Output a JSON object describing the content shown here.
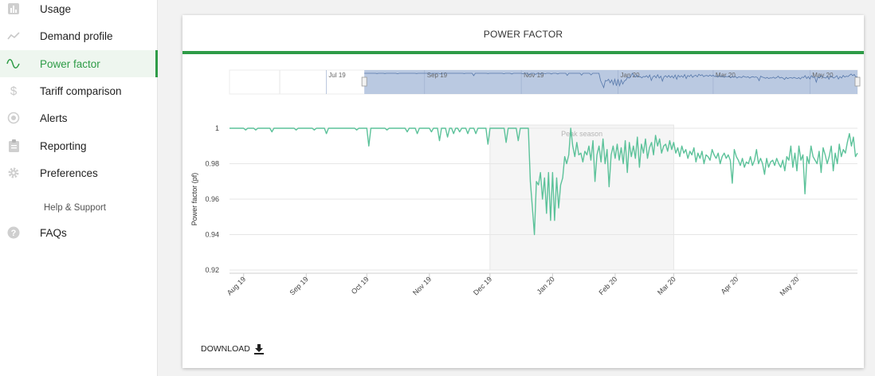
{
  "sidebar": {
    "items": [
      {
        "label": "Usage",
        "icon": "bar-chart-icon"
      },
      {
        "label": "Demand profile",
        "icon": "trend-line-icon"
      },
      {
        "label": "Power factor",
        "icon": "sine-wave-icon",
        "active": true
      },
      {
        "label": "Tariff comparison",
        "icon": "dollar-icon"
      },
      {
        "label": "Alerts",
        "icon": "alert-target-icon"
      },
      {
        "label": "Reporting",
        "icon": "clipboard-icon"
      },
      {
        "label": "Preferences",
        "icon": "gear-icon"
      }
    ],
    "section_label": "Help & Support",
    "help_items": [
      {
        "label": "FAQs",
        "icon": "question-circle-icon"
      }
    ]
  },
  "card": {
    "title": "POWER FACTOR",
    "accent_color": "#2e9c47",
    "download_label": "DOWNLOAD"
  },
  "chart_data": {
    "type": "line",
    "title": "POWER FACTOR",
    "xlabel": "",
    "ylabel": "Power factor (pf)",
    "ylim": [
      0.92,
      1.0
    ],
    "yticks": [
      "1",
      "0.98",
      "0.96",
      "0.94",
      "0.92"
    ],
    "x_ticks": [
      "Aug 19",
      "Sep 19",
      "Oct 19",
      "Nov 19",
      "Dec 19",
      "Jan 20",
      "Feb 20",
      "Mar 20",
      "Apr 20",
      "May 20"
    ],
    "x_range": [
      "2019-07-25",
      "2020-05-31"
    ],
    "line_color": "#5cc29a",
    "grid": true,
    "band": {
      "label": "Peak season",
      "from": "2019-12-01",
      "to": "2020-03-01",
      "color": "#f5f5f5"
    },
    "navigator": {
      "ticks": [
        "Jul 19",
        "Sep 19",
        "Nov 19",
        "Jan 20",
        "Mar 20",
        "May 20"
      ],
      "range": [
        "2019-05-01",
        "2020-05-31"
      ],
      "selection": [
        "2019-07-25",
        "2020-05-31"
      ],
      "selection_color": "#aebfdc"
    },
    "series": [
      {
        "values": [
          [
            "2019-07-25",
            1.0
          ],
          [
            "2019-08-01",
            1.0
          ],
          [
            "2019-08-02",
            0.999
          ],
          [
            "2019-08-03",
            1.0
          ],
          [
            "2019-08-06",
            1.0
          ],
          [
            "2019-08-07",
            0.999
          ],
          [
            "2019-08-08",
            1.0
          ],
          [
            "2019-08-14",
            1.0
          ],
          [
            "2019-08-15",
            0.998
          ],
          [
            "2019-08-16",
            1.0
          ],
          [
            "2019-08-26",
            1.0
          ],
          [
            "2019-08-27",
            0.999
          ],
          [
            "2019-08-28",
            1.0
          ],
          [
            "2019-09-04",
            1.0
          ],
          [
            "2019-09-05",
            0.999
          ],
          [
            "2019-09-06",
            1.0
          ],
          [
            "2019-09-10",
            1.0
          ],
          [
            "2019-09-11",
            0.997
          ],
          [
            "2019-09-12",
            1.0
          ],
          [
            "2019-09-25",
            1.0
          ],
          [
            "2019-09-26",
            0.999
          ],
          [
            "2019-09-27",
            1.0
          ],
          [
            "2019-10-01",
            1.0
          ],
          [
            "2019-10-02",
            0.99
          ],
          [
            "2019-10-03",
            1.0
          ],
          [
            "2019-10-10",
            1.0
          ],
          [
            "2019-10-11",
            0.999
          ],
          [
            "2019-10-12",
            1.0
          ],
          [
            "2019-10-20",
            1.0
          ],
          [
            "2019-10-21",
            0.998
          ],
          [
            "2019-10-22",
            1.0
          ],
          [
            "2019-10-25",
            1.0
          ],
          [
            "2019-10-26",
            0.997
          ],
          [
            "2019-10-27",
            1.0
          ],
          [
            "2019-11-01",
            1.0
          ],
          [
            "2019-11-02",
            0.998
          ],
          [
            "2019-11-03",
            1.0
          ],
          [
            "2019-11-05",
            1.0
          ],
          [
            "2019-11-06",
            0.993
          ],
          [
            "2019-11-07",
            1.0
          ],
          [
            "2019-11-09",
            1.0
          ],
          [
            "2019-11-10",
            0.995
          ],
          [
            "2019-11-11",
            1.0
          ],
          [
            "2019-11-12",
            1.0
          ],
          [
            "2019-11-13",
            0.997
          ],
          [
            "2019-11-14",
            1.0
          ],
          [
            "2019-11-15",
            1.0
          ],
          [
            "2019-11-16",
            0.998
          ],
          [
            "2019-11-17",
            1.0
          ],
          [
            "2019-11-19",
            1.0
          ],
          [
            "2019-11-20",
            0.997
          ],
          [
            "2019-11-21",
            1.0
          ],
          [
            "2019-11-23",
            1.0
          ],
          [
            "2019-11-24",
            0.997
          ],
          [
            "2019-11-25",
            1.0
          ],
          [
            "2019-11-29",
            1.0
          ],
          [
            "2019-11-30",
            0.991
          ],
          [
            "2019-12-01",
            1.0
          ],
          [
            "2019-12-08",
            1.0
          ],
          [
            "2019-12-09",
            0.992
          ],
          [
            "2019-12-10",
            1.0
          ],
          [
            "2019-12-14",
            1.0
          ],
          [
            "2019-12-15",
            0.993
          ],
          [
            "2019-12-16",
            1.0
          ],
          [
            "2019-12-20",
            1.0
          ],
          [
            "2019-12-21",
            0.97
          ],
          [
            "2019-12-22",
            0.955
          ],
          [
            "2019-12-23",
            0.94
          ],
          [
            "2019-12-24",
            0.97
          ],
          [
            "2019-12-25",
            0.968
          ],
          [
            "2019-12-26",
            0.975
          ],
          [
            "2019-12-27",
            0.96
          ],
          [
            "2019-12-28",
            0.972
          ],
          [
            "2019-12-29",
            0.952
          ],
          [
            "2019-12-30",
            0.975
          ],
          [
            "2019-12-31",
            0.948
          ],
          [
            "2020-01-01",
            0.975
          ],
          [
            "2020-01-02",
            0.948
          ],
          [
            "2020-01-03",
            0.972
          ],
          [
            "2020-01-04",
            0.955
          ],
          [
            "2020-01-05",
            0.968
          ],
          [
            "2020-01-06",
            0.972
          ],
          [
            "2020-01-07",
            0.984
          ],
          [
            "2020-01-08",
            0.98
          ],
          [
            "2020-01-09",
            0.985
          ],
          [
            "2020-01-10",
            1.0
          ],
          [
            "2020-01-11",
            0.99
          ],
          [
            "2020-01-12",
            0.984
          ],
          [
            "2020-01-13",
            0.992
          ],
          [
            "2020-01-14",
            0.985
          ],
          [
            "2020-01-15",
            0.986
          ],
          [
            "2020-01-16",
            0.981
          ],
          [
            "2020-01-17",
            0.987
          ],
          [
            "2020-01-18",
            0.985
          ],
          [
            "2020-01-19",
            0.99
          ],
          [
            "2020-01-20",
            0.982
          ],
          [
            "2020-01-21",
            0.993
          ],
          [
            "2020-01-22",
            0.97
          ],
          [
            "2020-01-23",
            0.985
          ],
          [
            "2020-01-24",
            0.99
          ],
          [
            "2020-01-25",
            0.981
          ],
          [
            "2020-01-26",
            0.994
          ],
          [
            "2020-01-27",
            0.98
          ],
          [
            "2020-01-28",
            0.988
          ],
          [
            "2020-01-29",
            0.967
          ],
          [
            "2020-01-30",
            0.985
          ],
          [
            "2020-01-31",
            0.99
          ],
          [
            "2020-02-01",
            0.983
          ],
          [
            "2020-02-02",
            0.991
          ],
          [
            "2020-02-03",
            0.982
          ],
          [
            "2020-02-04",
            0.989
          ],
          [
            "2020-02-05",
            0.98
          ],
          [
            "2020-02-06",
            0.993
          ],
          [
            "2020-02-07",
            0.975
          ],
          [
            "2020-02-08",
            0.992
          ],
          [
            "2020-02-09",
            0.984
          ],
          [
            "2020-02-10",
            0.99
          ],
          [
            "2020-02-11",
            0.983
          ],
          [
            "2020-02-12",
            0.995
          ],
          [
            "2020-02-13",
            0.978
          ],
          [
            "2020-02-14",
            0.991
          ],
          [
            "2020-02-15",
            0.986
          ],
          [
            "2020-02-16",
            0.994
          ],
          [
            "2020-02-17",
            0.983
          ],
          [
            "2020-02-18",
            0.989
          ],
          [
            "2020-02-19",
            0.992
          ],
          [
            "2020-02-20",
            0.985
          ],
          [
            "2020-02-21",
            0.996
          ],
          [
            "2020-02-22",
            0.99
          ],
          [
            "2020-02-23",
            0.994
          ],
          [
            "2020-02-24",
            0.986
          ],
          [
            "2020-02-25",
            0.99
          ],
          [
            "2020-02-26",
            0.991
          ],
          [
            "2020-02-27",
            0.987
          ],
          [
            "2020-02-28",
            0.993
          ],
          [
            "2020-02-29",
            0.988
          ],
          [
            "2020-03-01",
            0.992
          ],
          [
            "2020-03-02",
            0.986
          ],
          [
            "2020-03-03",
            0.989
          ],
          [
            "2020-03-04",
            0.984
          ],
          [
            "2020-03-05",
            0.99
          ],
          [
            "2020-03-06",
            0.986
          ],
          [
            "2020-03-07",
            0.988
          ],
          [
            "2020-03-08",
            0.983
          ],
          [
            "2020-03-09",
            0.987
          ],
          [
            "2020-03-10",
            0.985
          ],
          [
            "2020-03-11",
            0.989
          ],
          [
            "2020-03-12",
            0.981
          ],
          [
            "2020-03-13",
            0.986
          ],
          [
            "2020-03-14",
            0.983
          ],
          [
            "2020-03-15",
            0.987
          ],
          [
            "2020-03-16",
            0.98
          ],
          [
            "2020-03-17",
            0.985
          ],
          [
            "2020-03-18",
            0.984
          ],
          [
            "2020-03-19",
            0.982
          ],
          [
            "2020-03-20",
            0.988
          ],
          [
            "2020-03-21",
            0.985
          ],
          [
            "2020-03-22",
            0.983
          ],
          [
            "2020-03-23",
            0.986
          ],
          [
            "2020-03-24",
            0.98
          ],
          [
            "2020-03-25",
            0.984
          ],
          [
            "2020-03-26",
            0.986
          ],
          [
            "2020-03-27",
            0.983
          ],
          [
            "2020-03-28",
            0.985
          ],
          [
            "2020-03-29",
            0.982
          ],
          [
            "2020-03-30",
            0.969
          ],
          [
            "2020-03-31",
            0.988
          ],
          [
            "2020-04-01",
            0.984
          ],
          [
            "2020-04-02",
            0.982
          ],
          [
            "2020-04-03",
            0.979
          ],
          [
            "2020-04-04",
            0.983
          ],
          [
            "2020-04-05",
            0.978
          ],
          [
            "2020-04-06",
            0.981
          ],
          [
            "2020-04-07",
            0.98
          ],
          [
            "2020-04-08",
            0.984
          ],
          [
            "2020-04-09",
            0.979
          ],
          [
            "2020-04-10",
            0.982
          ],
          [
            "2020-04-11",
            0.988
          ],
          [
            "2020-04-12",
            0.98
          ],
          [
            "2020-04-13",
            0.983
          ],
          [
            "2020-04-14",
            0.98
          ],
          [
            "2020-04-15",
            0.974
          ],
          [
            "2020-04-16",
            0.983
          ],
          [
            "2020-04-17",
            0.978
          ],
          [
            "2020-04-18",
            0.981
          ],
          [
            "2020-04-19",
            0.982
          ],
          [
            "2020-04-20",
            0.979
          ],
          [
            "2020-04-21",
            0.983
          ],
          [
            "2020-04-22",
            0.98
          ],
          [
            "2020-04-23",
            0.978
          ],
          [
            "2020-04-24",
            0.982
          ],
          [
            "2020-04-25",
            0.976
          ],
          [
            "2020-04-26",
            0.984
          ],
          [
            "2020-04-27",
            0.982
          ],
          [
            "2020-04-28",
            0.99
          ],
          [
            "2020-04-29",
            0.978
          ],
          [
            "2020-04-30",
            0.986
          ],
          [
            "2020-05-01",
            0.976
          ],
          [
            "2020-05-02",
            0.99
          ],
          [
            "2020-05-03",
            0.982
          ],
          [
            "2020-05-04",
            0.985
          ],
          [
            "2020-05-05",
            0.963
          ],
          [
            "2020-05-06",
            0.984
          ],
          [
            "2020-05-07",
            0.98
          ],
          [
            "2020-05-08",
            0.99
          ],
          [
            "2020-05-09",
            0.984
          ],
          [
            "2020-05-10",
            0.982
          ],
          [
            "2020-05-11",
            0.98
          ],
          [
            "2020-05-12",
            0.987
          ],
          [
            "2020-05-13",
            0.975
          ],
          [
            "2020-05-14",
            0.989
          ],
          [
            "2020-05-15",
            0.985
          ],
          [
            "2020-05-16",
            0.98
          ],
          [
            "2020-05-17",
            0.984
          ],
          [
            "2020-05-18",
            0.99
          ],
          [
            "2020-05-19",
            0.976
          ],
          [
            "2020-05-20",
            0.986
          ],
          [
            "2020-05-21",
            0.98
          ],
          [
            "2020-05-22",
            0.991
          ],
          [
            "2020-05-23",
            0.984
          ],
          [
            "2020-05-24",
            0.988
          ],
          [
            "2020-05-25",
            0.986
          ],
          [
            "2020-05-26",
            0.992
          ],
          [
            "2020-05-27",
            0.997
          ],
          [
            "2020-05-28",
            0.99
          ],
          [
            "2020-05-29",
            0.995
          ],
          [
            "2020-05-30",
            0.984
          ],
          [
            "2020-05-31",
            0.986
          ]
        ]
      }
    ]
  }
}
